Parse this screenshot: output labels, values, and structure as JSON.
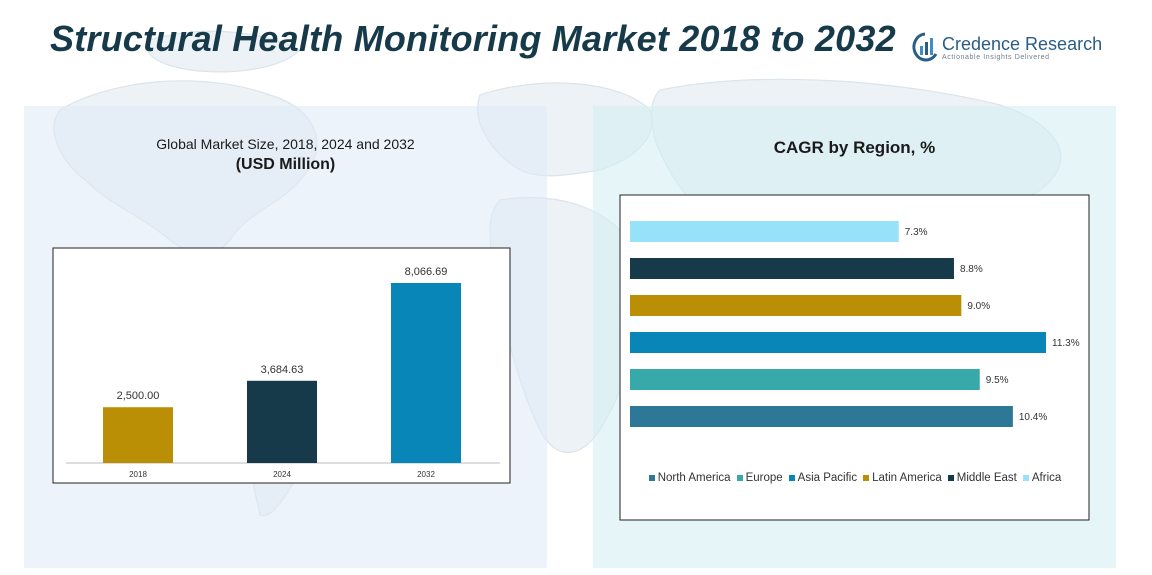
{
  "title": "Structural Health Monitoring Market 2018 to 2032",
  "brand": {
    "name": "Credence Research",
    "tagline": "Actionable Insights Delivered"
  },
  "colors": {
    "title": "#173a4b",
    "panel_left_bg": "#dfeaf6",
    "panel_right_bg": "#d3eef2",
    "brand": "#2a5d86"
  },
  "left_panel": {
    "subtitle": "Global Market Size, 2018, 2024 and 2032",
    "unit": "(USD Million)"
  },
  "right_panel": {
    "title": "CAGR by Region, %"
  },
  "chart_data": [
    {
      "type": "bar",
      "title": "Global Market Size, 2018, 2024 and 2032",
      "subtitle": "(USD Million)",
      "categories": [
        "2018",
        "2024",
        "2032"
      ],
      "values": [
        2500.0,
        3684.63,
        8066.69
      ],
      "value_labels": [
        "2,500.00",
        "3,684.63",
        "8,066.69"
      ],
      "colors": [
        "#bb8f05",
        "#173a4b",
        "#0786b7"
      ],
      "ylim": [
        0,
        8200
      ],
      "grid": false,
      "legend": "none"
    },
    {
      "type": "bar",
      "orientation": "horizontal",
      "title": "CAGR by Region, %",
      "categories": [
        "Africa",
        "Middle East",
        "Latin America",
        "Asia Pacific",
        "Europe",
        "North America"
      ],
      "values": [
        7.3,
        8.8,
        9.0,
        11.3,
        9.5,
        10.4
      ],
      "value_labels": [
        "7.3%",
        "8.8%",
        "9.0%",
        "11.3%",
        "9.5%",
        "10.4%"
      ],
      "colors": [
        "#98e2f9",
        "#173a4b",
        "#bb8f05",
        "#0786b7",
        "#38a9a9",
        "#2c7896"
      ],
      "xlim": [
        0,
        11.3
      ],
      "grid": false,
      "legend": "bottom",
      "legend_order": [
        "North America",
        "Europe",
        "Asia Pacific",
        "Latin America",
        "Middle East",
        "Africa"
      ],
      "legend_colors": [
        "#2c7896",
        "#38a9a9",
        "#0786b7",
        "#bb8f05",
        "#173a4b",
        "#98e2f9"
      ]
    }
  ]
}
